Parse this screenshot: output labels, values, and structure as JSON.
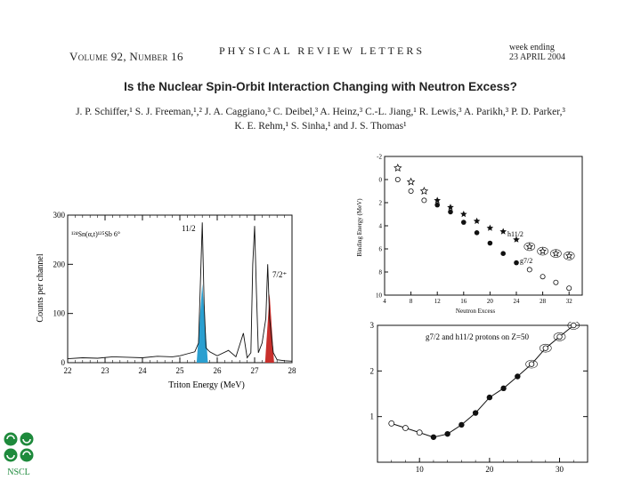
{
  "header": {
    "volume": "Volume 92, Number 16",
    "journal": "PHYSICAL   REVIEW   LETTERS",
    "week_label": "week ending",
    "week_date": "23 APRIL 2004"
  },
  "article": {
    "title": "Is the Nuclear Spin-Orbit Interaction Changing with Neutron Excess?",
    "authors_line1": "J. P. Schiffer,¹ S. J. Freeman,¹,² J. A. Caggiano,³ C. Deibel,³ A. Heinz,³ C.-L. Jiang,¹ R. Lewis,³ A. Parikh,³ P. D. Parker,³",
    "authors_line2": "K. E. Rehm,¹ S. Sinha,¹ and J. S. Thomas¹"
  },
  "logo": {
    "label": "NSCL",
    "color": "#1e8a3c"
  },
  "chart_data": [
    {
      "type": "line",
      "title": "",
      "xlabel": "Triton Energy (MeV)",
      "ylabel": "Counts per channel",
      "xlim": [
        22,
        28
      ],
      "ylim": [
        0,
        300
      ],
      "xticks": [
        "22",
        "23",
        "24",
        "25",
        "26",
        "27",
        "28"
      ],
      "yticks": [
        "0",
        "100",
        "200",
        "300"
      ],
      "annotations": [
        "¹²⁴Sn(α,t)¹²⁵Sb   6°",
        "11/2",
        "7/2⁺"
      ],
      "highlight_colors": {
        "11/2": "#2a9fd0",
        "7/2": "#c8302c"
      },
      "series": [
        {
          "name": "spectrum",
          "x": [
            22.0,
            22.4,
            22.8,
            23.2,
            23.6,
            24.0,
            24.4,
            24.8,
            25.0,
            25.2,
            25.4,
            25.5,
            25.6,
            25.65,
            25.7,
            25.8,
            26.0,
            26.3,
            26.5,
            26.7,
            26.8,
            26.9,
            26.95,
            27.0,
            27.05,
            27.1,
            27.2,
            27.3,
            27.35,
            27.4,
            27.5,
            27.6,
            27.8,
            28.0
          ],
          "y": [
            8,
            10,
            9,
            12,
            11,
            10,
            13,
            12,
            14,
            18,
            22,
            40,
            285,
            120,
            30,
            22,
            14,
            25,
            12,
            60,
            10,
            20,
            200,
            278,
            140,
            20,
            40,
            90,
            200,
            90,
            20,
            6,
            4,
            3
          ]
        }
      ]
    },
    {
      "type": "scatter",
      "title": "",
      "xlabel": "Neutron Excess",
      "ylabel": "Binding Energy (MeV)",
      "xlim": [
        4,
        34
      ],
      "ylim": [
        10,
        -2
      ],
      "xticks": [
        "4",
        "8",
        "12",
        "16",
        "20",
        "24",
        "28",
        "32"
      ],
      "yticks": [
        "-2",
        "0",
        "2",
        "4",
        "6",
        "8",
        "10"
      ],
      "annotations": [
        "h11/2",
        "g7/2"
      ],
      "series": [
        {
          "name": "h11/2 stars",
          "marker": "star-open",
          "x": [
            6,
            8,
            10
          ],
          "y": [
            -1.0,
            0.2,
            1.0
          ]
        },
        {
          "name": "h11/2 filled stars",
          "marker": "star-filled",
          "x": [
            12,
            14,
            16,
            18,
            20,
            22,
            24
          ],
          "y": [
            1.8,
            2.4,
            3.0,
            3.6,
            4.2,
            4.5,
            5.2
          ]
        },
        {
          "name": "h11/2 bracket",
          "marker": "star-bracket",
          "x": [
            26,
            28,
            30,
            32
          ],
          "y": [
            5.8,
            6.2,
            6.4,
            6.6
          ]
        },
        {
          "name": "g7/2 open",
          "marker": "circle-open",
          "x": [
            6,
            8,
            10
          ],
          "y": [
            0.0,
            1.0,
            1.8
          ]
        },
        {
          "name": "g7/2 filled",
          "marker": "circle-filled",
          "x": [
            12,
            14,
            16,
            18,
            20,
            22,
            24
          ],
          "y": [
            2.2,
            2.8,
            3.7,
            4.6,
            5.5,
            6.4,
            7.2
          ]
        },
        {
          "name": "g7/2 open tail",
          "marker": "circle-open",
          "x": [
            26,
            28,
            30,
            32
          ],
          "y": [
            7.8,
            8.4,
            8.9,
            9.4
          ]
        }
      ]
    },
    {
      "type": "scatter",
      "title": "g7/2 and h11/2 protons on Z=50",
      "xlabel": "",
      "ylabel": "",
      "xlim": [
        4,
        34
      ],
      "ylim": [
        0,
        3
      ],
      "xticks": [
        "10",
        "20",
        "30"
      ],
      "yticks": [
        "1",
        "2",
        "3"
      ],
      "series": [
        {
          "name": "open left",
          "marker": "circle-open",
          "x": [
            6,
            8,
            10
          ],
          "y": [
            0.85,
            0.75,
            0.65
          ]
        },
        {
          "name": "filled",
          "marker": "circle-filled",
          "x": [
            12,
            14,
            16,
            18,
            20,
            22,
            24
          ],
          "y": [
            0.55,
            0.62,
            0.82,
            1.08,
            1.42,
            1.62,
            1.88
          ]
        },
        {
          "name": "bracket right",
          "marker": "circle-bracket",
          "x": [
            26,
            28,
            30,
            32
          ],
          "y": [
            2.15,
            2.5,
            2.75,
            3.0
          ]
        }
      ]
    }
  ]
}
